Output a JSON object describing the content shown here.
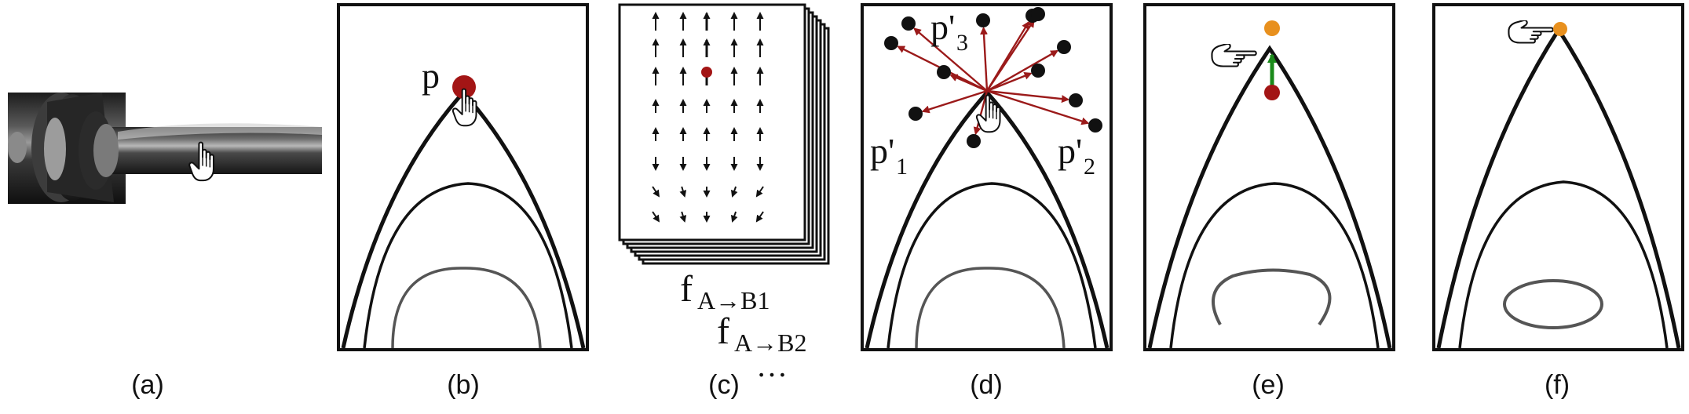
{
  "captions": {
    "a": "(a)",
    "b": "(b)",
    "c": "(c)",
    "d": "(d)",
    "e": "(e)",
    "f": "(f)"
  },
  "labels": {
    "p": "p",
    "p_prime_1": "p'",
    "p_prime_1_sub": "1",
    "p_prime_2": "p'",
    "p_prime_2_sub": "2",
    "p_prime_3": "p'",
    "p_prime_3_sub": "3",
    "f_base_1": "f",
    "f_sub_1": "A→B1",
    "f_base_2": "f",
    "f_sub_2": "A→B2",
    "ellipsis": "…"
  },
  "colors": {
    "red_point": "#a31515",
    "orange_point": "#e8901e",
    "green_arrow": "#1a8a1a",
    "dark_red_arrow": "#9b1a1a",
    "curve": "#111111",
    "inner_curve": "#555555"
  },
  "icons": [
    "hand-pointer-icon",
    "hand-point-right-icon"
  ]
}
